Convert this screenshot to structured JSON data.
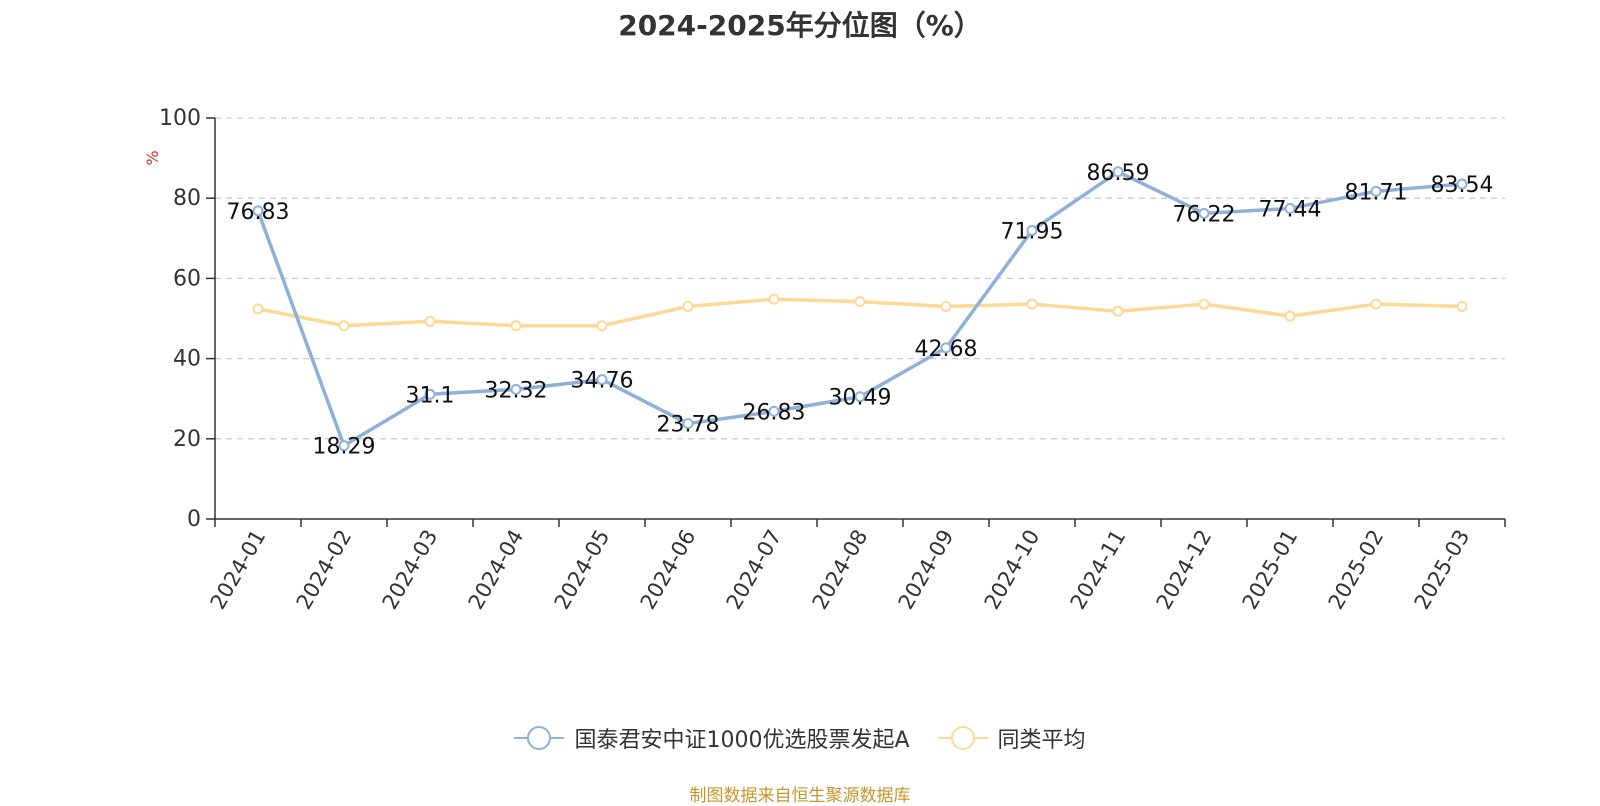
{
  "chart_data": {
    "type": "line",
    "title": "2024-2025年分位图（%）",
    "ylabel": "%",
    "xlabel": "",
    "ylim": [
      0,
      100
    ],
    "yticks": [
      0,
      20,
      40,
      60,
      80,
      100
    ],
    "grid": true,
    "legend_position": "bottom-center",
    "categories": [
      "2024-01",
      "2024-02",
      "2024-03",
      "2024-04",
      "2024-05",
      "2024-06",
      "2024-07",
      "2024-08",
      "2024-09",
      "2024-10",
      "2024-11",
      "2024-12",
      "2025-01",
      "2025-02",
      "2025-03"
    ],
    "series": [
      {
        "name": "国泰君安中证1000优选股票发起A",
        "color": "#8eb0d9",
        "show_labels": true,
        "values": [
          76.83,
          18.29,
          31.1,
          32.32,
          34.76,
          23.78,
          26.83,
          30.49,
          42.68,
          71.95,
          86.59,
          76.22,
          77.44,
          81.71,
          83.54
        ]
      },
      {
        "name": "同类平均",
        "color": "#fcd995",
        "show_labels": false,
        "values": [
          52.4,
          48.2,
          49.3,
          48.2,
          48.2,
          53.0,
          54.8,
          54.2,
          53.0,
          53.6,
          51.8,
          53.6,
          50.6,
          53.6,
          53.0
        ]
      }
    ]
  },
  "source_note": "制图数据来自恒生聚源数据库",
  "colors": {
    "axis": "#333333",
    "grid": "#cccccc",
    "ylabel": "#e03030",
    "text": "#333333",
    "source": "#c8952b"
  }
}
